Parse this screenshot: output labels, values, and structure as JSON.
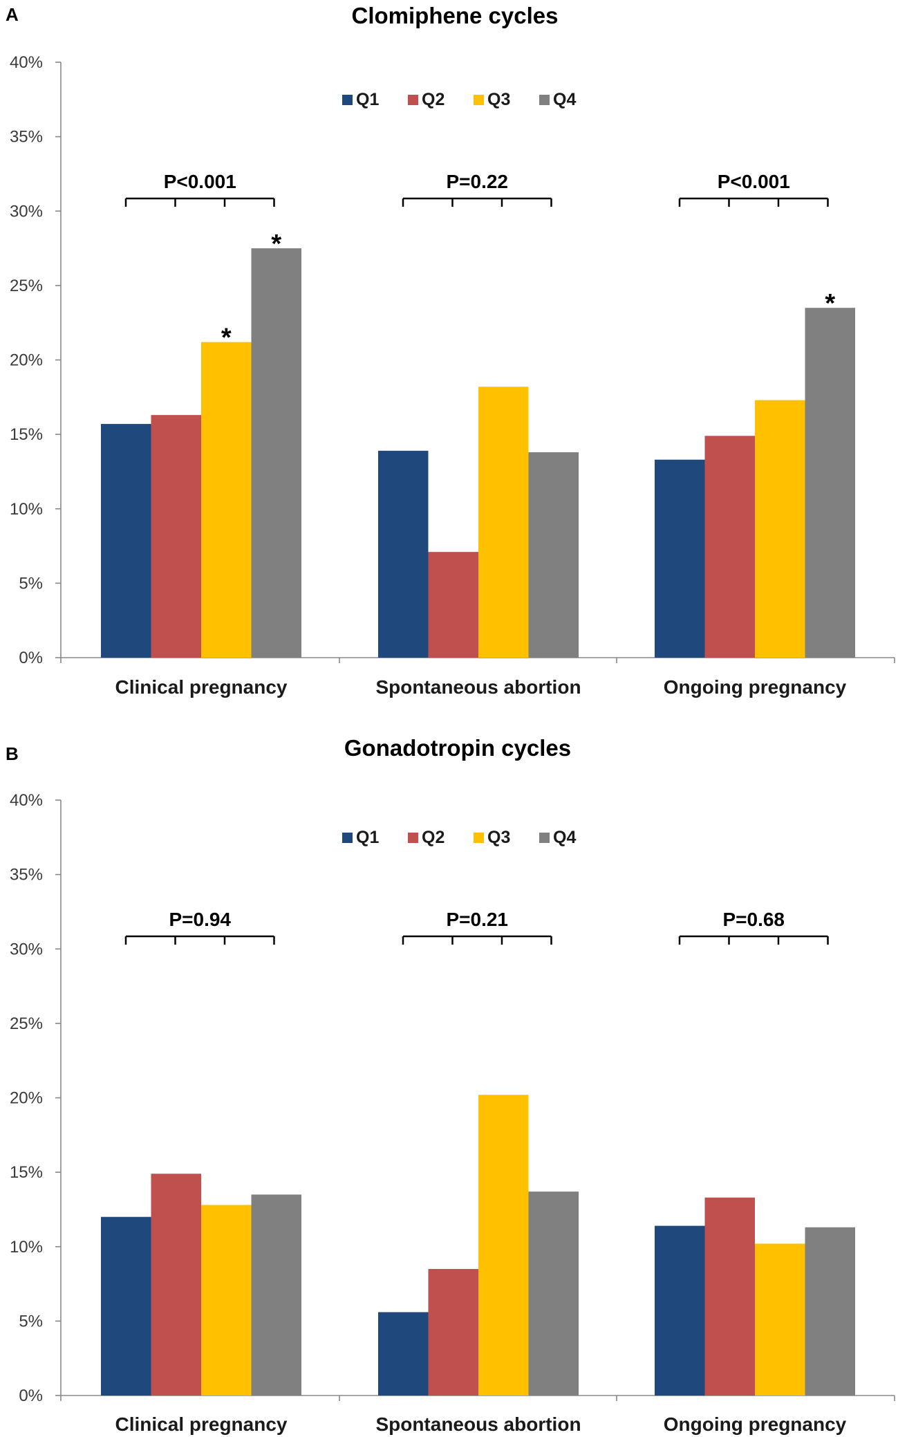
{
  "colors": {
    "Q1": "#1f497d",
    "Q2": "#c0504d",
    "Q3": "#ffc000",
    "Q4": "#808080"
  },
  "chart_data": [
    {
      "type": "bar",
      "panel": "A",
      "title": "Clomiphene cycles",
      "xlabel": "",
      "ylabel": "",
      "ylim": [
        0,
        40
      ],
      "yticks": [
        "0%",
        "5%",
        "10%",
        "15%",
        "20%",
        "25%",
        "30%",
        "35%",
        "40%"
      ],
      "legend_position": "top-center",
      "categories": [
        "Clinical pregnancy",
        "Spontaneous abortion",
        "Ongoing pregnancy"
      ],
      "series": [
        {
          "name": "Q1",
          "values": [
            15.7,
            13.9,
            13.3
          ]
        },
        {
          "name": "Q2",
          "values": [
            16.3,
            7.1,
            14.9
          ]
        },
        {
          "name": "Q3",
          "values": [
            21.2,
            18.2,
            17.3
          ]
        },
        {
          "name": "Q4",
          "values": [
            27.5,
            13.8,
            23.5
          ]
        }
      ],
      "p_values": [
        "P<0.001",
        "P=0.22",
        "P<0.001"
      ],
      "significance_markers": [
        {
          "category": "Clinical pregnancy",
          "series": "Q3",
          "label": "*"
        },
        {
          "category": "Clinical pregnancy",
          "series": "Q4",
          "label": "*"
        },
        {
          "category": "Ongoing pregnancy",
          "series": "Q4",
          "label": "*"
        }
      ]
    },
    {
      "type": "bar",
      "panel": "B",
      "title": "Gonadotropin cycles",
      "xlabel": "",
      "ylabel": "",
      "ylim": [
        0,
        40
      ],
      "yticks": [
        "0%",
        "5%",
        "10%",
        "15%",
        "20%",
        "25%",
        "30%",
        "35%",
        "40%"
      ],
      "legend_position": "top-center",
      "categories": [
        "Clinical pregnancy",
        "Spontaneous abortion",
        "Ongoing pregnancy"
      ],
      "series": [
        {
          "name": "Q1",
          "values": [
            12.0,
            5.6,
            11.4
          ]
        },
        {
          "name": "Q2",
          "values": [
            14.9,
            8.5,
            13.3
          ]
        },
        {
          "name": "Q3",
          "values": [
            12.8,
            20.2,
            10.2
          ]
        },
        {
          "name": "Q4",
          "values": [
            13.5,
            13.7,
            11.3
          ]
        }
      ],
      "p_values": [
        "P=0.94",
        "P=0.21",
        "P=0.68"
      ],
      "significance_markers": []
    }
  ]
}
